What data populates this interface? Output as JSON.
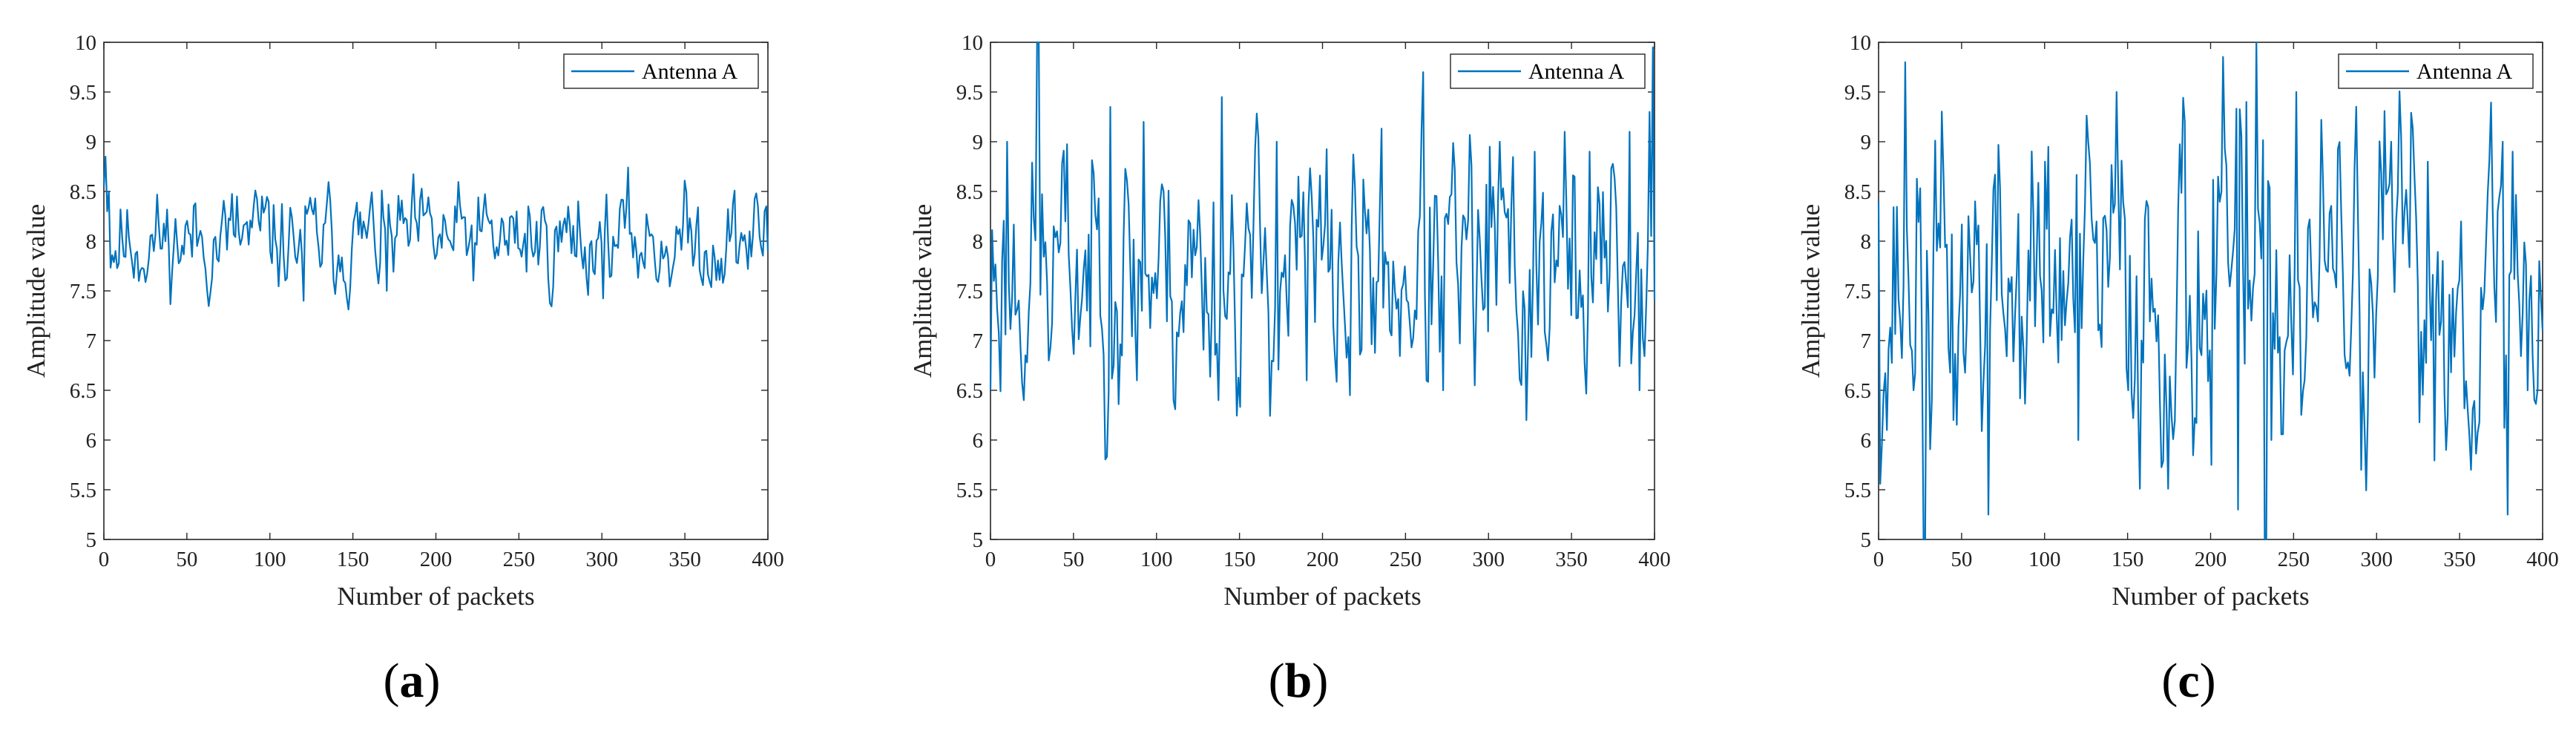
{
  "captions": {
    "a": "a",
    "b": "b",
    "c": "c"
  },
  "chart_data": [
    {
      "type": "line",
      "title": "",
      "xlabel": "Number of packets",
      "ylabel": "Amplitude value",
      "xlim": [
        0,
        400
      ],
      "ylim": [
        5,
        10
      ],
      "xticks": [
        "0",
        "50",
        "100",
        "150",
        "200",
        "250",
        "300",
        "350",
        "400"
      ],
      "yticks": [
        "5",
        "5.5",
        "6",
        "6.5",
        "7",
        "7.5",
        "8",
        "8.5",
        "9",
        "9.5",
        "10"
      ],
      "legend": "top-right",
      "series": [
        {
          "name": "Antenna A",
          "color": "#0072BD",
          "base": 8.0,
          "amp": 0.22,
          "seed": 11,
          "n": 400,
          "spikes": [
            [
              0,
              8.55
            ],
            [
              1,
              8.85
            ],
            [
              2,
              8.3
            ],
            [
              3,
              8.5
            ],
            [
              80,
              8.45
            ],
            [
              95,
              8.45
            ],
            [
              120,
              7.4
            ],
            [
              160,
              8.35
            ],
            [
              170,
              7.5
            ],
            [
              255,
              8.35
            ],
            [
              285,
              8.4
            ],
            [
              397,
              8.3
            ],
            [
              398,
              8.35
            ],
            [
              399,
              7.9
            ]
          ]
        }
      ]
    },
    {
      "type": "line",
      "title": "",
      "xlabel": "Number of packets",
      "ylabel": "Amplitude value",
      "xlim": [
        0,
        400
      ],
      "ylim": [
        5,
        10
      ],
      "xticks": [
        "0",
        "50",
        "100",
        "150",
        "200",
        "250",
        "300",
        "350",
        "400"
      ],
      "yticks": [
        "5",
        "5.5",
        "6",
        "6.5",
        "7",
        "7.5",
        "8",
        "8.5",
        "9",
        "9.5",
        "10"
      ],
      "legend": "top-right",
      "series": [
        {
          "name": "Antenna A",
          "color": "#0072BD",
          "base": 7.7,
          "amp": 0.55,
          "seed": 23,
          "n": 400,
          "spikes": [
            [
              0,
              6.5
            ],
            [
              2,
              7.6
            ],
            [
              10,
              9.0
            ],
            [
              28,
              10.0
            ],
            [
              29,
              10.0
            ],
            [
              35,
              6.8
            ],
            [
              72,
              9.35
            ],
            [
              88,
              6.6
            ],
            [
              92,
              9.2
            ],
            [
              110,
              6.4
            ],
            [
              137,
              6.4
            ],
            [
              139,
              9.45
            ],
            [
              172,
              9.0
            ],
            [
              190,
              6.6
            ],
            [
              216,
              6.45
            ],
            [
              260,
              9.7
            ],
            [
              272,
              6.5
            ],
            [
              291,
              6.55
            ],
            [
              300,
              8.95
            ],
            [
              322,
              6.2
            ],
            [
              327,
              8.9
            ],
            [
              345,
              9.1
            ],
            [
              360,
              8.9
            ],
            [
              384,
              9.1
            ],
            [
              390,
              6.5
            ],
            [
              396,
              9.3
            ],
            [
              398,
              9.95
            ],
            [
              399,
              7.4
            ]
          ]
        }
      ]
    },
    {
      "type": "line",
      "title": "",
      "xlabel": "Number of packets",
      "ylabel": "Amplitude value",
      "xlim": [
        0,
        400
      ],
      "ylim": [
        5,
        10
      ],
      "xticks": [
        "0",
        "50",
        "100",
        "150",
        "200",
        "250",
        "300",
        "350",
        "400"
      ],
      "yticks": [
        "5",
        "5.5",
        "6",
        "6.5",
        "7",
        "7.5",
        "8",
        "8.5",
        "9",
        "9.5",
        "10"
      ],
      "legend": "top-right",
      "series": [
        {
          "name": "Antenna A",
          "color": "#0072BD",
          "base": 7.5,
          "amp": 0.7,
          "seed": 37,
          "n": 400,
          "spikes": [
            [
              0,
              8.4
            ],
            [
              5,
              6.1
            ],
            [
              16,
              9.8
            ],
            [
              20,
              6.9
            ],
            [
              27,
              5.0
            ],
            [
              28,
              5.0
            ],
            [
              32,
              6.4
            ],
            [
              45,
              6.2
            ],
            [
              58,
              8.4
            ],
            [
              66,
              5.25
            ],
            [
              100,
              8.8
            ],
            [
              120,
              6.0
            ],
            [
              143,
              9.5
            ],
            [
              150,
              6.5
            ],
            [
              184,
              9.2
            ],
            [
              200,
              5.75
            ],
            [
              216,
              5.3
            ],
            [
              221,
              9.4
            ],
            [
              227,
              10.0
            ],
            [
              232,
              5.0
            ],
            [
              233,
              5.0
            ],
            [
              236,
              6.0
            ],
            [
              251,
              9.5
            ],
            [
              290,
              5.7
            ],
            [
              308,
              9.0
            ],
            [
              330,
              8.8
            ],
            [
              356,
              5.7
            ],
            [
              375,
              9.0
            ],
            [
              378,
              5.25
            ],
            [
              381,
              8.9
            ],
            [
              390,
              6.5
            ],
            [
              397,
              7.8
            ],
            [
              399,
              7.1
            ]
          ]
        }
      ]
    }
  ]
}
